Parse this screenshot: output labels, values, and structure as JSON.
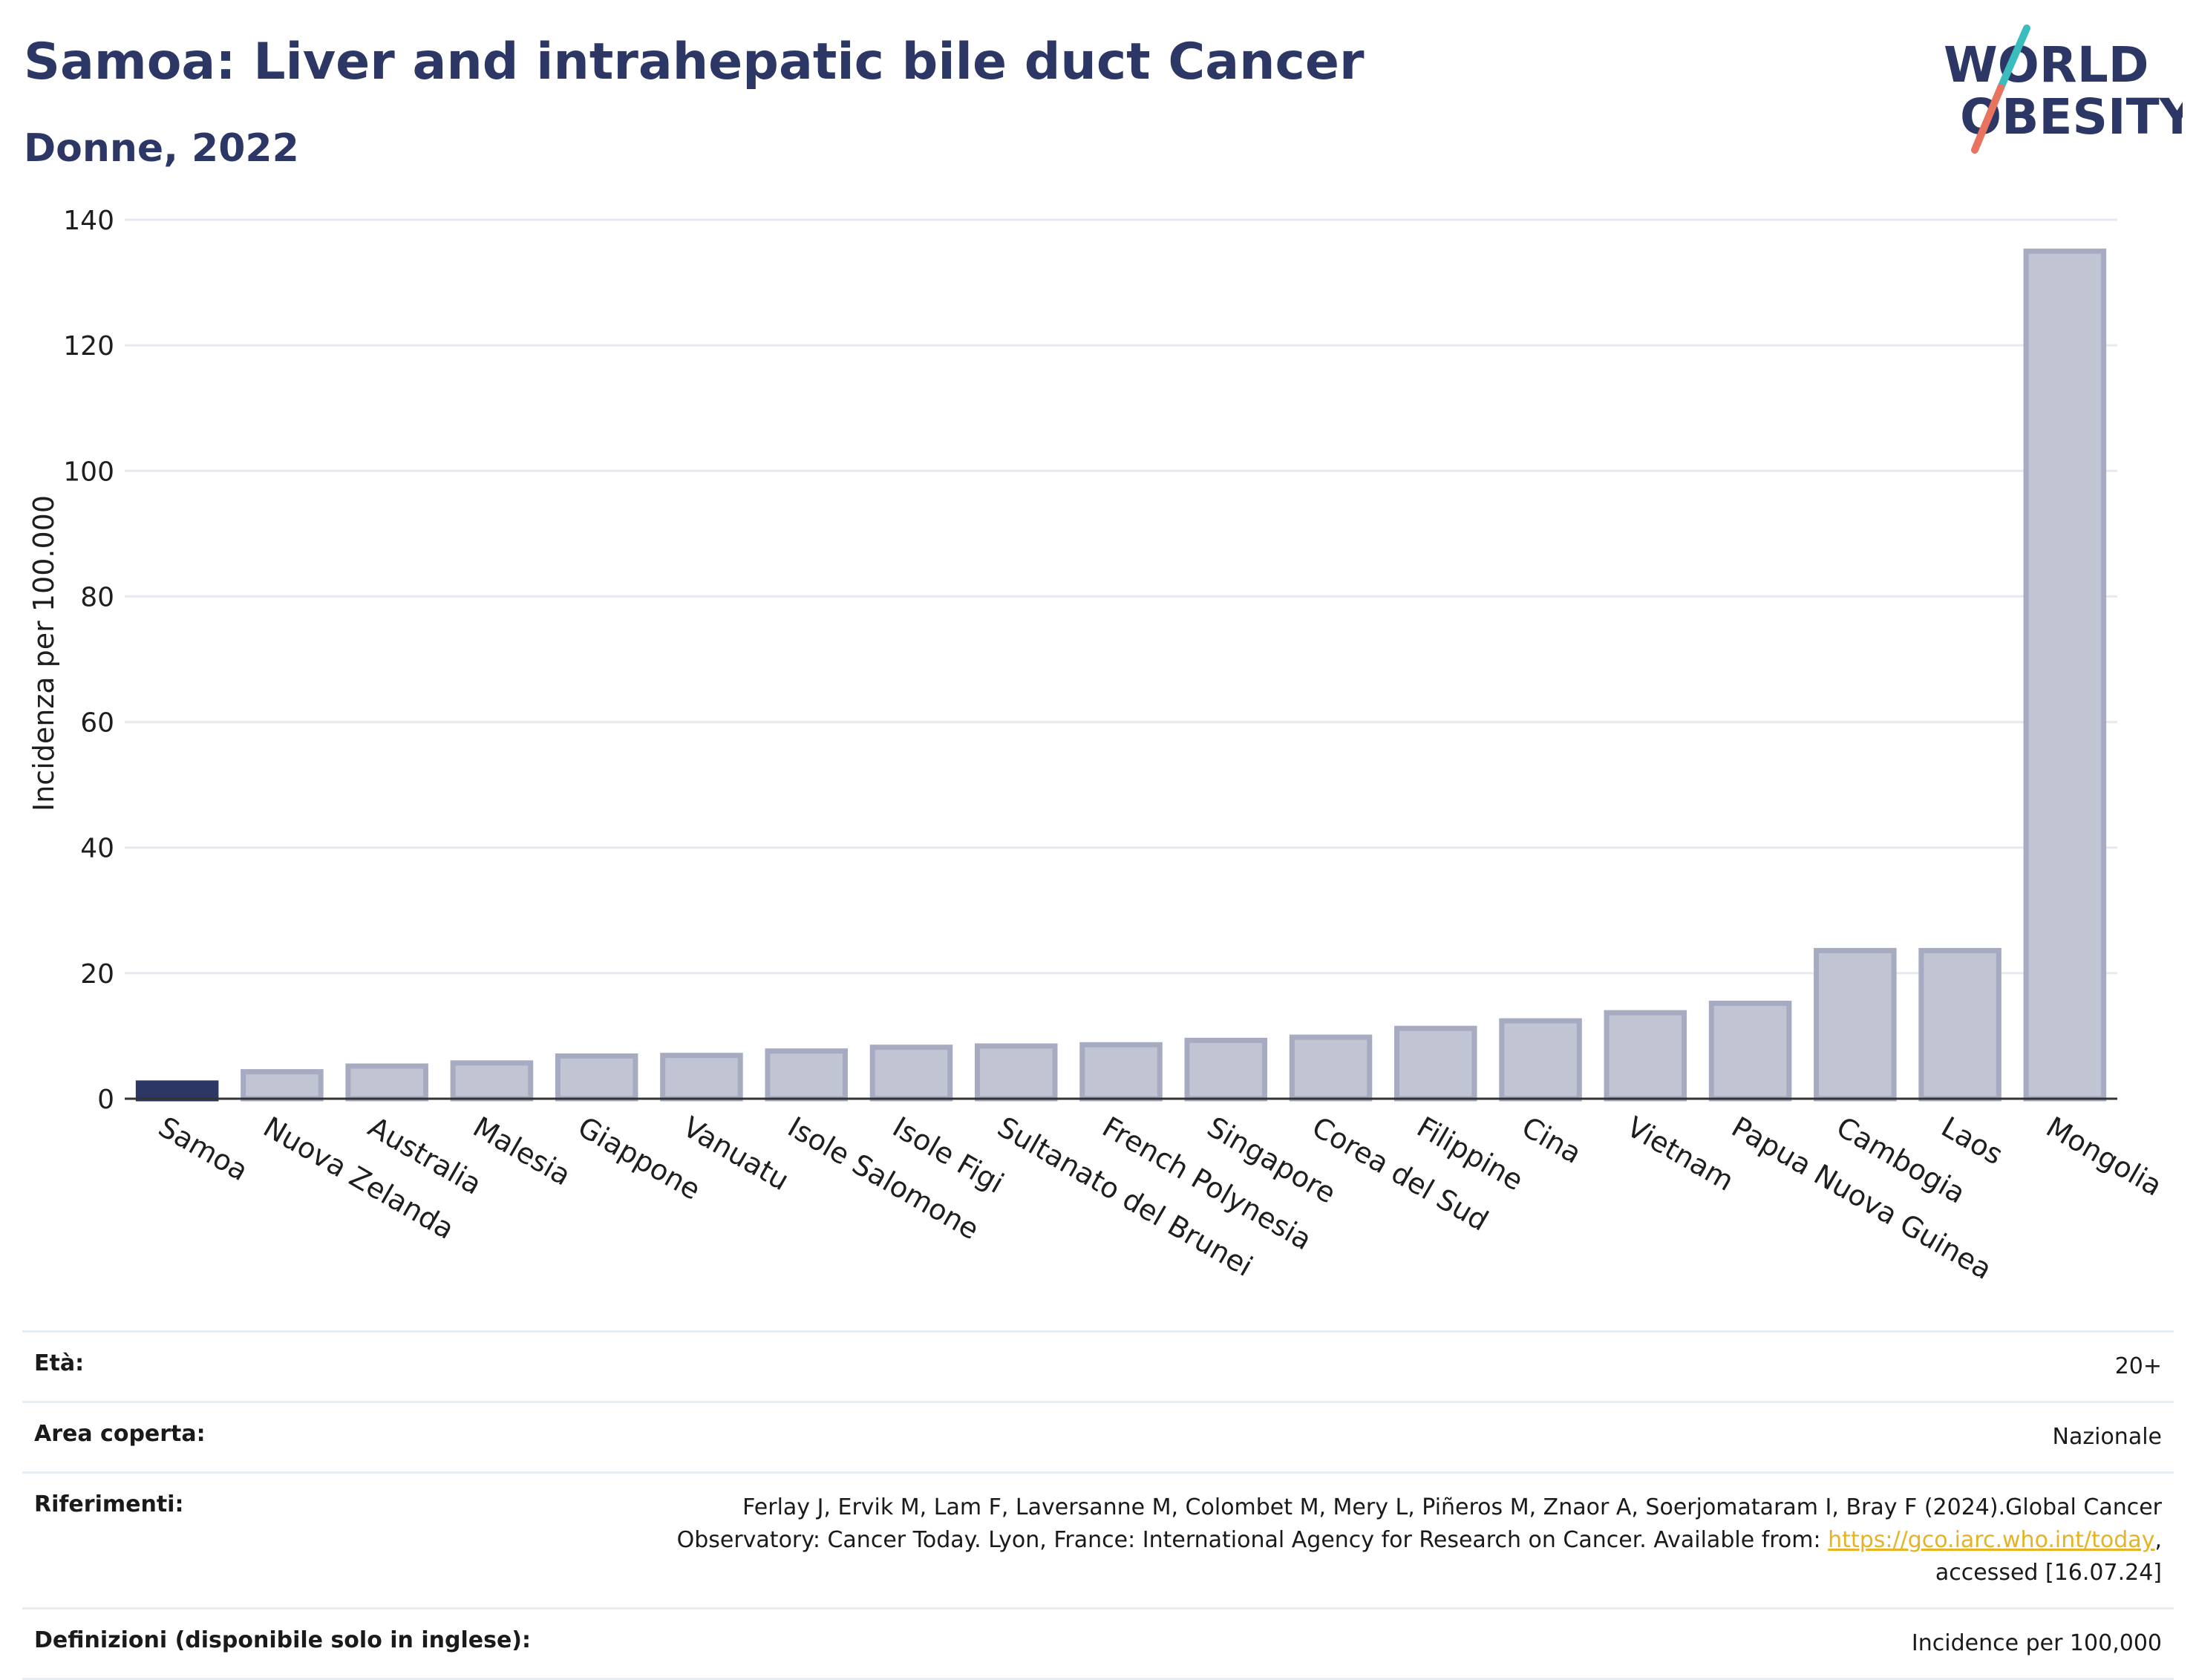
{
  "header": {
    "title": "Samoa: Liver and intrahepatic bile duct Cancer",
    "subtitle": "Donne, 2022"
  },
  "logo": {
    "line1": "WORLD",
    "line2": "OBESITY"
  },
  "chart_data": {
    "type": "bar",
    "ylabel": "Incidenza per 100.000",
    "xlabel": "",
    "ylim": [
      0,
      140
    ],
    "yticks": [
      0,
      20,
      40,
      60,
      80,
      100,
      120,
      140
    ],
    "grid": true,
    "highlight": "Samoa",
    "categories": [
      "Samoa",
      "Nuova Zelanda",
      "Australia",
      "Malesia",
      "Giappone",
      "Vanuatu",
      "Isole Salomone",
      "Isole Figi",
      "Sultanato del Brunei",
      "French Polynesia",
      "Singapore",
      "Corea del Sud",
      "Filippine",
      "Cina",
      "Vietnam",
      "Papua Nuova Guinea",
      "Cambogia",
      "Laos",
      "Mongolia"
    ],
    "values": [
      2.5,
      4.3,
      5.2,
      5.7,
      6.8,
      6.9,
      7.6,
      8.2,
      8.4,
      8.6,
      9.3,
      9.8,
      11.2,
      12.4,
      13.7,
      15.2,
      23.6,
      23.6,
      135.0
    ],
    "colors": {
      "highlight": "#2c3765",
      "bar_fill": "#c0c4d3",
      "bar_stroke": "#a6abc2",
      "grid": "#e6eaf0",
      "axis": "#333333"
    }
  },
  "info": {
    "age_label": "Età:",
    "age_value": "20+",
    "area_label": "Area coperta:",
    "area_value": "Nazionale",
    "ref_label": "Riferimenti:",
    "ref_text_1": "Ferlay J, Ervik M, Lam F, Laversanne M, Colombet M, Mery L, Piñeros M, Znaor A, Soerjomataram I, Bray F (2024).Global Cancer Observatory: Cancer Today. Lyon, France: International Agency for Research on Cancer. Available from: ",
    "ref_link": "https://gco.iarc.who.int/today",
    "ref_text_2": ", accessed [16.07.24]",
    "def_label": "Definizioni (disponibile solo in inglese):",
    "def_value": "Incidence per 100,000"
  }
}
